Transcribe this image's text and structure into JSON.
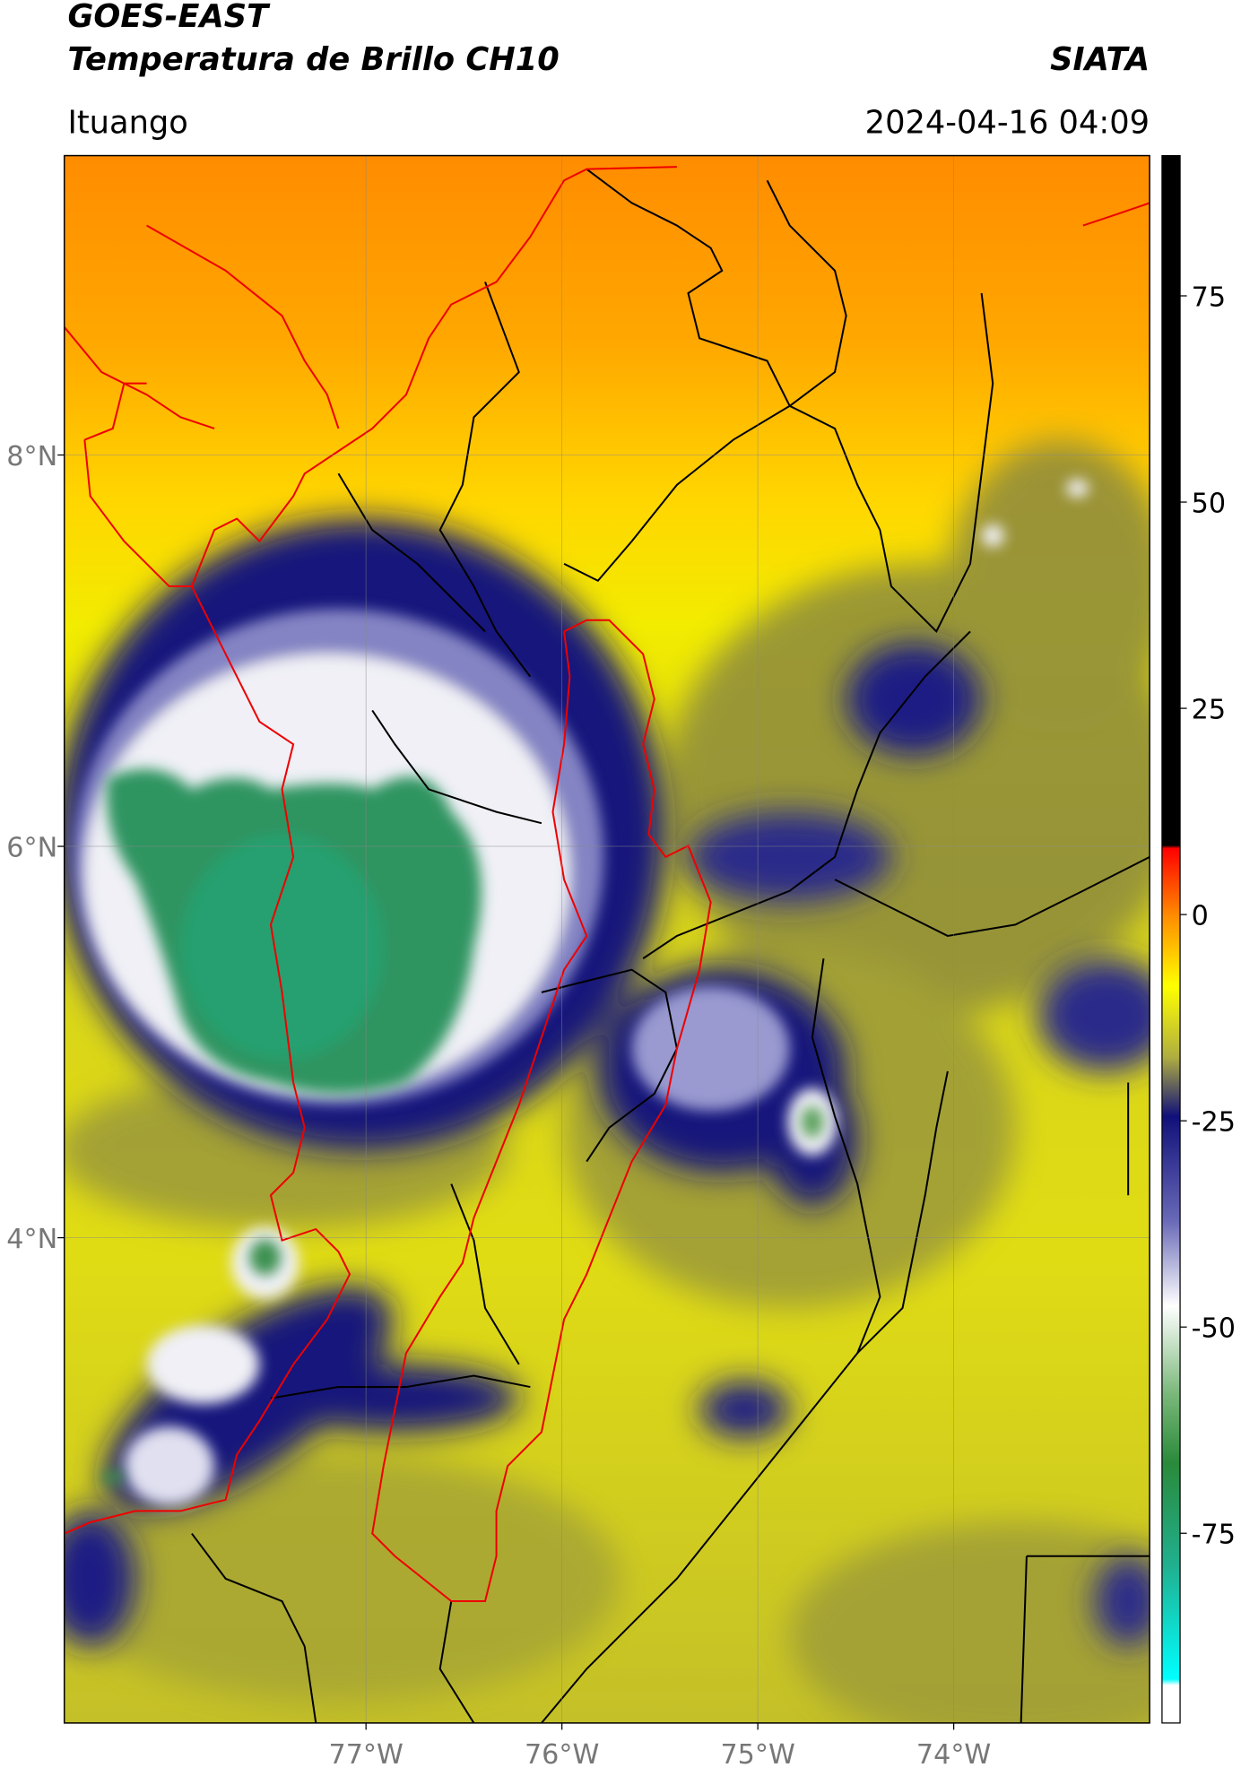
{
  "header": {
    "title": "GOES-EAST",
    "subtitle": "Temperatura de Brillo CH10",
    "source": "SIATA",
    "location": "Ituango",
    "datetime": "2024-04-16 04:09"
  },
  "map": {
    "xlim": [
      -78.54,
      -73.0
    ],
    "ylim": [
      1.52,
      9.53
    ],
    "xticks": [
      {
        "value": -77,
        "label": "77°W"
      },
      {
        "value": -76,
        "label": "76°W"
      },
      {
        "value": -75,
        "label": "75°W"
      },
      {
        "value": -74,
        "label": "74°W"
      }
    ],
    "yticks": [
      {
        "value": 4,
        "label": "4°N"
      },
      {
        "value": 6,
        "label": "6°N"
      },
      {
        "value": 8,
        "label": "8°N"
      }
    ],
    "grid": true
  },
  "colorbar": {
    "lim": [
      -98,
      92
    ],
    "ticks": [
      -75,
      -50,
      -25,
      0,
      25,
      50,
      75
    ]
  }
}
